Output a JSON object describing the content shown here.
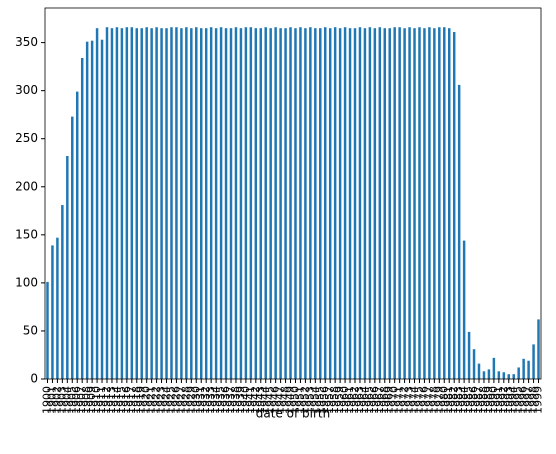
{
  "chart_data": {
    "type": "bar",
    "x_label": "date of birth",
    "color": "#1f77b4",
    "categories": [
      "1900",
      "1901",
      "1902",
      "1903",
      "1904",
      "1905",
      "1906",
      "1907",
      "1908",
      "1909",
      "1910",
      "1911",
      "1912",
      "1913",
      "1914",
      "1915",
      "1916",
      "1917",
      "1918",
      "1919",
      "1920",
      "1921",
      "1922",
      "1923",
      "1924",
      "1925",
      "1926",
      "1927",
      "1928",
      "1929",
      "1930",
      "1931",
      "1932",
      "1933",
      "1934",
      "1935",
      "1936",
      "1937",
      "1938",
      "1939",
      "1940",
      "1941",
      "1942",
      "1943",
      "1944",
      "1945",
      "1946",
      "1947",
      "1948",
      "1949",
      "1950",
      "1951",
      "1952",
      "1953",
      "1954",
      "1955",
      "1956",
      "1957",
      "1958",
      "1959",
      "1960",
      "1961",
      "1962",
      "1963",
      "1964",
      "1965",
      "1966",
      "1967",
      "1968",
      "1969",
      "1970",
      "1971",
      "1972",
      "1973",
      "1974",
      "1975",
      "1976",
      "1977",
      "1978",
      "1979",
      "1980",
      "1981",
      "1982",
      "1983",
      "1984",
      "1985",
      "1986",
      "1987",
      "1988",
      "1989",
      "1990",
      "1991",
      "1992",
      "1993",
      "1994",
      "1995",
      "1996",
      "1997",
      "1998",
      "1999"
    ],
    "values": [
      101,
      139,
      147,
      181,
      232,
      273,
      299,
      334,
      351,
      352,
      365,
      353,
      366,
      365,
      366,
      365,
      366,
      366,
      365,
      365,
      366,
      365,
      366,
      365,
      365,
      366,
      366,
      365,
      366,
      365,
      366,
      365,
      365,
      366,
      365,
      366,
      365,
      365,
      366,
      365,
      366,
      366,
      365,
      365,
      366,
      365,
      366,
      365,
      365,
      366,
      365,
      366,
      365,
      366,
      365,
      365,
      366,
      365,
      366,
      365,
      366,
      365,
      365,
      366,
      365,
      366,
      365,
      366,
      365,
      365,
      366,
      366,
      365,
      366,
      365,
      366,
      365,
      366,
      365,
      366,
      366,
      365,
      361,
      306,
      144,
      49,
      31,
      16,
      8,
      10,
      22,
      8,
      7,
      5,
      5,
      12,
      21,
      19,
      36,
      62
    ],
    "ylim": [
      0,
      386
    ],
    "yticks": [
      0,
      50,
      100,
      150,
      200,
      250,
      300,
      350
    ]
  }
}
